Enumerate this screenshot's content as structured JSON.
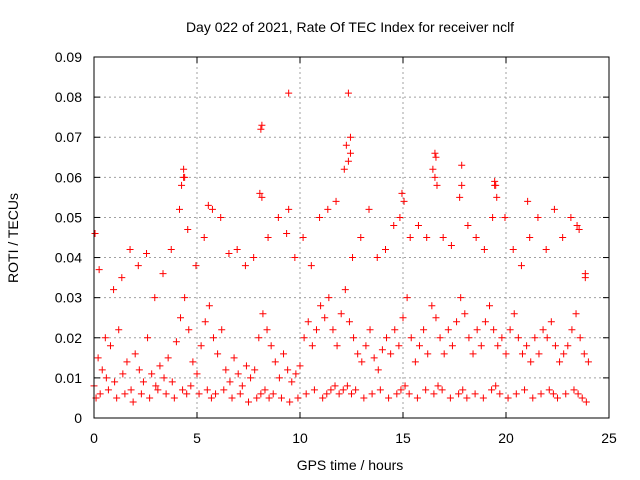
{
  "chart_data": {
    "type": "scatter",
    "title": "Day 022 of 2021, Rate Of TEC Index for receiver nclf",
    "xlabel": "GPS time / hours",
    "ylabel": "ROTI / TECUs",
    "xlim": [
      0,
      25
    ],
    "ylim": [
      0,
      0.09
    ],
    "x_ticks": [
      0,
      5,
      10,
      15,
      20,
      25
    ],
    "y_ticks": [
      0,
      0.01,
      0.02,
      0.03,
      0.04,
      0.05,
      0.06,
      0.07,
      0.08,
      0.09
    ],
    "x_tick_labels": [
      "0",
      "5",
      "10",
      "15",
      "20",
      "25"
    ],
    "y_tick_labels": [
      "0",
      "0.01",
      "0.02",
      "0.03",
      "0.04",
      "0.05",
      "0.06",
      "0.07",
      "0.08",
      "0.09"
    ],
    "grid": true,
    "marker": "plus",
    "marker_color": "#ff0000",
    "series": [
      {
        "x": [
          0.0,
          0.2,
          0.4,
          0.6,
          0.8,
          1.0,
          1.2,
          1.4,
          1.6,
          1.8,
          2.0,
          2.2,
          2.4,
          2.6,
          2.8,
          3.0,
          3.2,
          3.4,
          3.6,
          3.8,
          4.0,
          4.2,
          4.4,
          4.6,
          4.8,
          5.0,
          5.2,
          5.4,
          5.6,
          5.8,
          6.0,
          6.2,
          6.4,
          6.6,
          6.8,
          7.0,
          7.2,
          7.4,
          7.6,
          7.8,
          8.0,
          8.2,
          8.4,
          8.6,
          8.8,
          9.0,
          9.2,
          9.4,
          9.6,
          9.8,
          10.0,
          10.2,
          10.4,
          10.6,
          10.8,
          11.0,
          11.2,
          11.4,
          11.6,
          11.8,
          12.0,
          12.2,
          12.4,
          12.6,
          12.8,
          13.0,
          13.2,
          13.4,
          13.6,
          13.8,
          14.0,
          14.2,
          14.4,
          14.6,
          14.8,
          15.0,
          15.2,
          15.4,
          15.6,
          15.8,
          16.0,
          16.2,
          16.4,
          16.6,
          16.8,
          17.0,
          17.2,
          17.4,
          17.6,
          17.8,
          18.0,
          18.2,
          18.4,
          18.6,
          18.8,
          19.0,
          19.2,
          19.4,
          19.6,
          19.8,
          20.0,
          20.2,
          20.4,
          20.6,
          20.8,
          21.0,
          21.2,
          21.4,
          21.6,
          21.8,
          22.0,
          22.2,
          22.4,
          22.6,
          22.8,
          23.0,
          23.2,
          23.4,
          23.6,
          23.8,
          24.0,
          0.1,
          0.3,
          0.7,
          1.1,
          1.5,
          1.9,
          2.3,
          2.7,
          3.1,
          3.5,
          3.9,
          4.3,
          4.5,
          4.7,
          5.1,
          5.5,
          5.7,
          5.9,
          6.3,
          6.7,
          7.1,
          7.5,
          7.9,
          8.1,
          8.3,
          8.5,
          8.7,
          9.1,
          9.5,
          9.9,
          10.3,
          10.7,
          11.1,
          11.3,
          11.5,
          11.7,
          11.9,
          12.1,
          12.3,
          12.5,
          12.7,
          13.1,
          13.5,
          13.9,
          14.3,
          14.7,
          14.9,
          15.1,
          15.3,
          15.7,
          16.1,
          16.5,
          16.7,
          16.9,
          17.3,
          17.7,
          17.9,
          18.1,
          18.5,
          18.9,
          19.3,
          19.5,
          19.7,
          20.1,
          20.5,
          20.9,
          21.3,
          21.7,
          22.1,
          22.3,
          22.5,
          22.9,
          23.3,
          23.5,
          23.7,
          23.9,
          0.05,
          0.25,
          0.55,
          0.95,
          1.35,
          1.75,
          2.15,
          2.55,
          2.95,
          3.35,
          3.75,
          4.15,
          4.25,
          4.35,
          4.55,
          4.95,
          5.35,
          5.75,
          6.15,
          6.55,
          6.95,
          7.35,
          7.75,
          8.05,
          8.15,
          8.45,
          8.95,
          9.35,
          9.45,
          9.75,
          10.15,
          10.55,
          10.95,
          11.35,
          11.75,
          12.15,
          12.35,
          12.45,
          12.55,
          12.95,
          13.35,
          13.75,
          14.15,
          14.55,
          14.85,
          14.95,
          15.05,
          15.35,
          15.75,
          16.15,
          16.45,
          16.55,
          16.65,
          16.95,
          17.35,
          17.75,
          17.85,
          18.15,
          18.55,
          18.95,
          19.35,
          19.45,
          19.55,
          19.95,
          20.35,
          20.75,
          21.15,
          21.55,
          21.95,
          22.35,
          22.75,
          23.15,
          23.45,
          23.55,
          23.85,
          9.45,
          12.35,
          8.1,
          8.15,
          12.45,
          12.25,
          16.55,
          16.6,
          4.35,
          4.4,
          17.85,
          5.55,
          19.45,
          19.5,
          21.05,
          23.85
        ],
        "y": [
          0.008,
          0.015,
          0.012,
          0.01,
          0.018,
          0.009,
          0.022,
          0.011,
          0.014,
          0.007,
          0.016,
          0.012,
          0.009,
          0.02,
          0.011,
          0.008,
          0.013,
          0.01,
          0.015,
          0.009,
          0.019,
          0.025,
          0.03,
          0.022,
          0.014,
          0.011,
          0.018,
          0.024,
          0.028,
          0.02,
          0.016,
          0.022,
          0.012,
          0.009,
          0.015,
          0.011,
          0.008,
          0.013,
          0.01,
          0.012,
          0.02,
          0.026,
          0.022,
          0.018,
          0.014,
          0.01,
          0.016,
          0.012,
          0.009,
          0.011,
          0.013,
          0.02,
          0.024,
          0.018,
          0.022,
          0.028,
          0.025,
          0.03,
          0.022,
          0.018,
          0.026,
          0.032,
          0.024,
          0.02,
          0.016,
          0.014,
          0.018,
          0.022,
          0.015,
          0.012,
          0.017,
          0.02,
          0.016,
          0.022,
          0.018,
          0.025,
          0.03,
          0.02,
          0.014,
          0.018,
          0.022,
          0.016,
          0.028,
          0.025,
          0.02,
          0.016,
          0.022,
          0.018,
          0.024,
          0.03,
          0.026,
          0.02,
          0.016,
          0.022,
          0.018,
          0.024,
          0.028,
          0.022,
          0.018,
          0.02,
          0.016,
          0.022,
          0.026,
          0.02,
          0.016,
          0.018,
          0.014,
          0.02,
          0.016,
          0.022,
          0.02,
          0.024,
          0.018,
          0.014,
          0.016,
          0.018,
          0.022,
          0.026,
          0.02,
          0.016,
          0.014,
          0.005,
          0.006,
          0.007,
          0.005,
          0.006,
          0.004,
          0.006,
          0.005,
          0.007,
          0.006,
          0.005,
          0.007,
          0.006,
          0.008,
          0.006,
          0.007,
          0.005,
          0.006,
          0.007,
          0.005,
          0.006,
          0.004,
          0.005,
          0.006,
          0.007,
          0.005,
          0.006,
          0.005,
          0.004,
          0.005,
          0.006,
          0.007,
          0.005,
          0.006,
          0.007,
          0.008,
          0.006,
          0.007,
          0.008,
          0.006,
          0.007,
          0.005,
          0.006,
          0.007,
          0.005,
          0.006,
          0.007,
          0.008,
          0.006,
          0.005,
          0.007,
          0.006,
          0.008,
          0.007,
          0.005,
          0.006,
          0.007,
          0.005,
          0.006,
          0.005,
          0.007,
          0.008,
          0.006,
          0.005,
          0.006,
          0.007,
          0.005,
          0.006,
          0.007,
          0.006,
          0.005,
          0.006,
          0.007,
          0.006,
          0.005,
          0.004,
          0.046,
          0.037,
          0.02,
          0.032,
          0.035,
          0.042,
          0.038,
          0.041,
          0.03,
          0.036,
          0.042,
          0.052,
          0.058,
          0.06,
          0.047,
          0.038,
          0.045,
          0.052,
          0.05,
          0.041,
          0.042,
          0.038,
          0.04,
          0.056,
          0.055,
          0.045,
          0.05,
          0.046,
          0.052,
          0.04,
          0.045,
          0.038,
          0.05,
          0.052,
          0.054,
          0.062,
          0.064,
          0.066,
          0.04,
          0.045,
          0.052,
          0.04,
          0.042,
          0.048,
          0.05,
          0.056,
          0.054,
          0.045,
          0.048,
          0.045,
          0.062,
          0.06,
          0.058,
          0.045,
          0.043,
          0.055,
          0.058,
          0.048,
          0.045,
          0.042,
          0.05,
          0.058,
          0.055,
          0.05,
          0.042,
          0.038,
          0.045,
          0.05,
          0.042,
          0.052,
          0.045,
          0.05,
          0.048,
          0.047,
          0.036,
          0.081,
          0.081,
          0.072,
          0.073,
          0.07,
          0.068,
          0.066,
          0.065,
          0.062,
          0.06,
          0.063,
          0.053,
          0.059,
          0.058,
          0.054,
          0.035
        ]
      }
    ]
  }
}
